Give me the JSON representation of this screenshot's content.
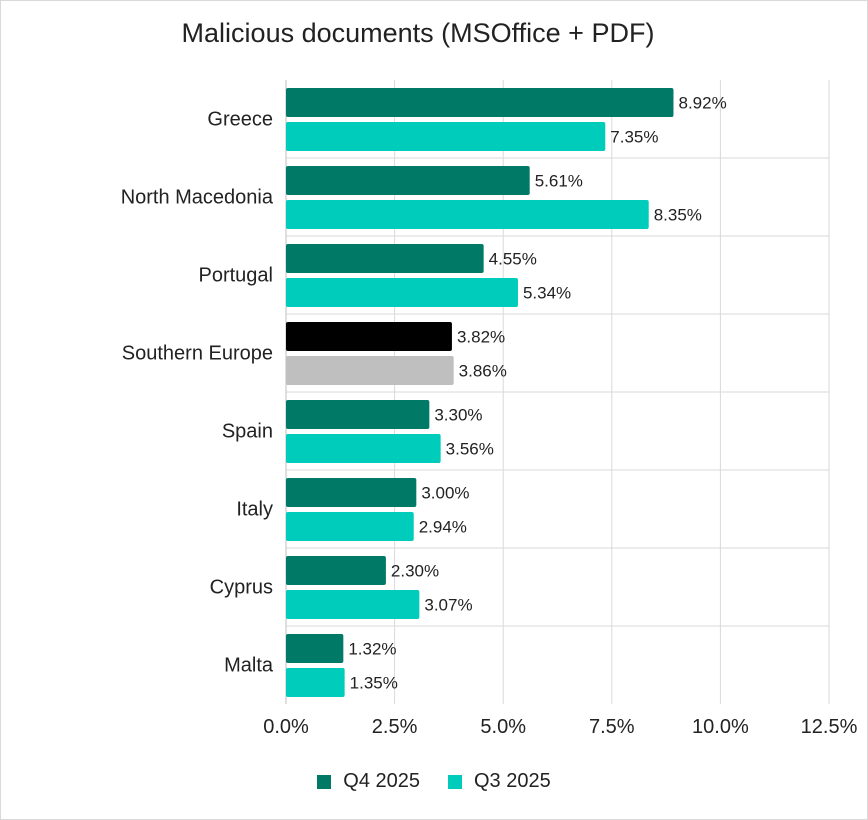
{
  "chart_data": {
    "type": "bar",
    "orientation": "horizontal",
    "title": "Malicious documents (MSOffice + PDF)",
    "categories": [
      "Greece",
      "North Macedonia",
      "Portugal",
      "Southern Europe",
      "Spain",
      "Italy",
      "Cyprus",
      "Malta"
    ],
    "series": [
      {
        "name": "Q4 2025",
        "values": [
          8.92,
          5.61,
          4.55,
          3.82,
          3.3,
          3.0,
          2.3,
          1.32
        ],
        "labels": [
          "8.92%",
          "5.61%",
          "4.55%",
          "3.82%",
          "3.30%",
          "3.00%",
          "2.30%",
          "1.32%"
        ],
        "color": "#007a66"
      },
      {
        "name": "Q3 2025",
        "values": [
          7.35,
          8.35,
          5.34,
          3.86,
          3.56,
          2.94,
          3.07,
          1.35
        ],
        "labels": [
          "7.35%",
          "8.35%",
          "5.34%",
          "3.86%",
          "3.56%",
          "2.94%",
          "3.07%",
          "1.35%"
        ],
        "color": "#00ccbb"
      }
    ],
    "highlight": {
      "category": "Southern Europe",
      "colors": [
        "#000000",
        "#bfbfbf"
      ]
    },
    "xlim": [
      0,
      12.5
    ],
    "xticks": [
      0,
      2.5,
      5,
      7.5,
      10,
      12.5
    ],
    "xtick_labels": [
      "0.0%",
      "2.5%",
      "5.0%",
      "7.5%",
      "10.0%",
      "12.5%"
    ],
    "xlabel": "",
    "ylabel": "",
    "grid": true,
    "legend": "bottom"
  }
}
